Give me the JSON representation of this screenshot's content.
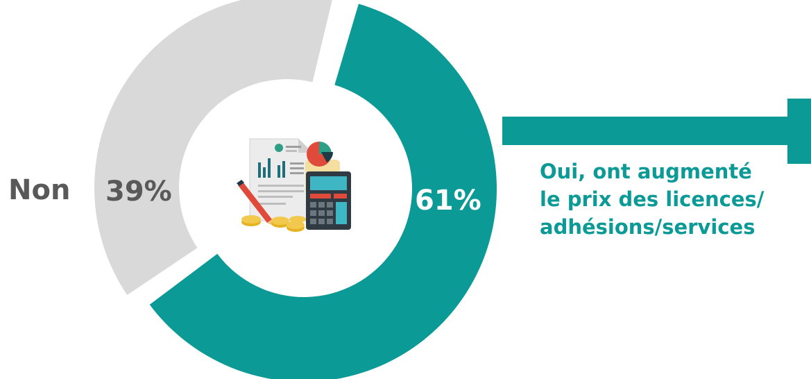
{
  "chart_data": {
    "type": "pie",
    "categories": [
      "Oui",
      "Non"
    ],
    "values": [
      61,
      39
    ],
    "value_labels": [
      "61%",
      "39%"
    ],
    "colors": [
      "#0b9a96",
      "#d9d9d9"
    ],
    "label_colors": [
      "#ffffff",
      "#595959"
    ]
  },
  "labels": {
    "non": "Non",
    "oui_lines": [
      "Oui, ont augmenté",
      "le prix des licences/",
      "adhésions/services"
    ]
  },
  "icon": "finance-calculator-icon",
  "arrow_color": "#0b9a96"
}
